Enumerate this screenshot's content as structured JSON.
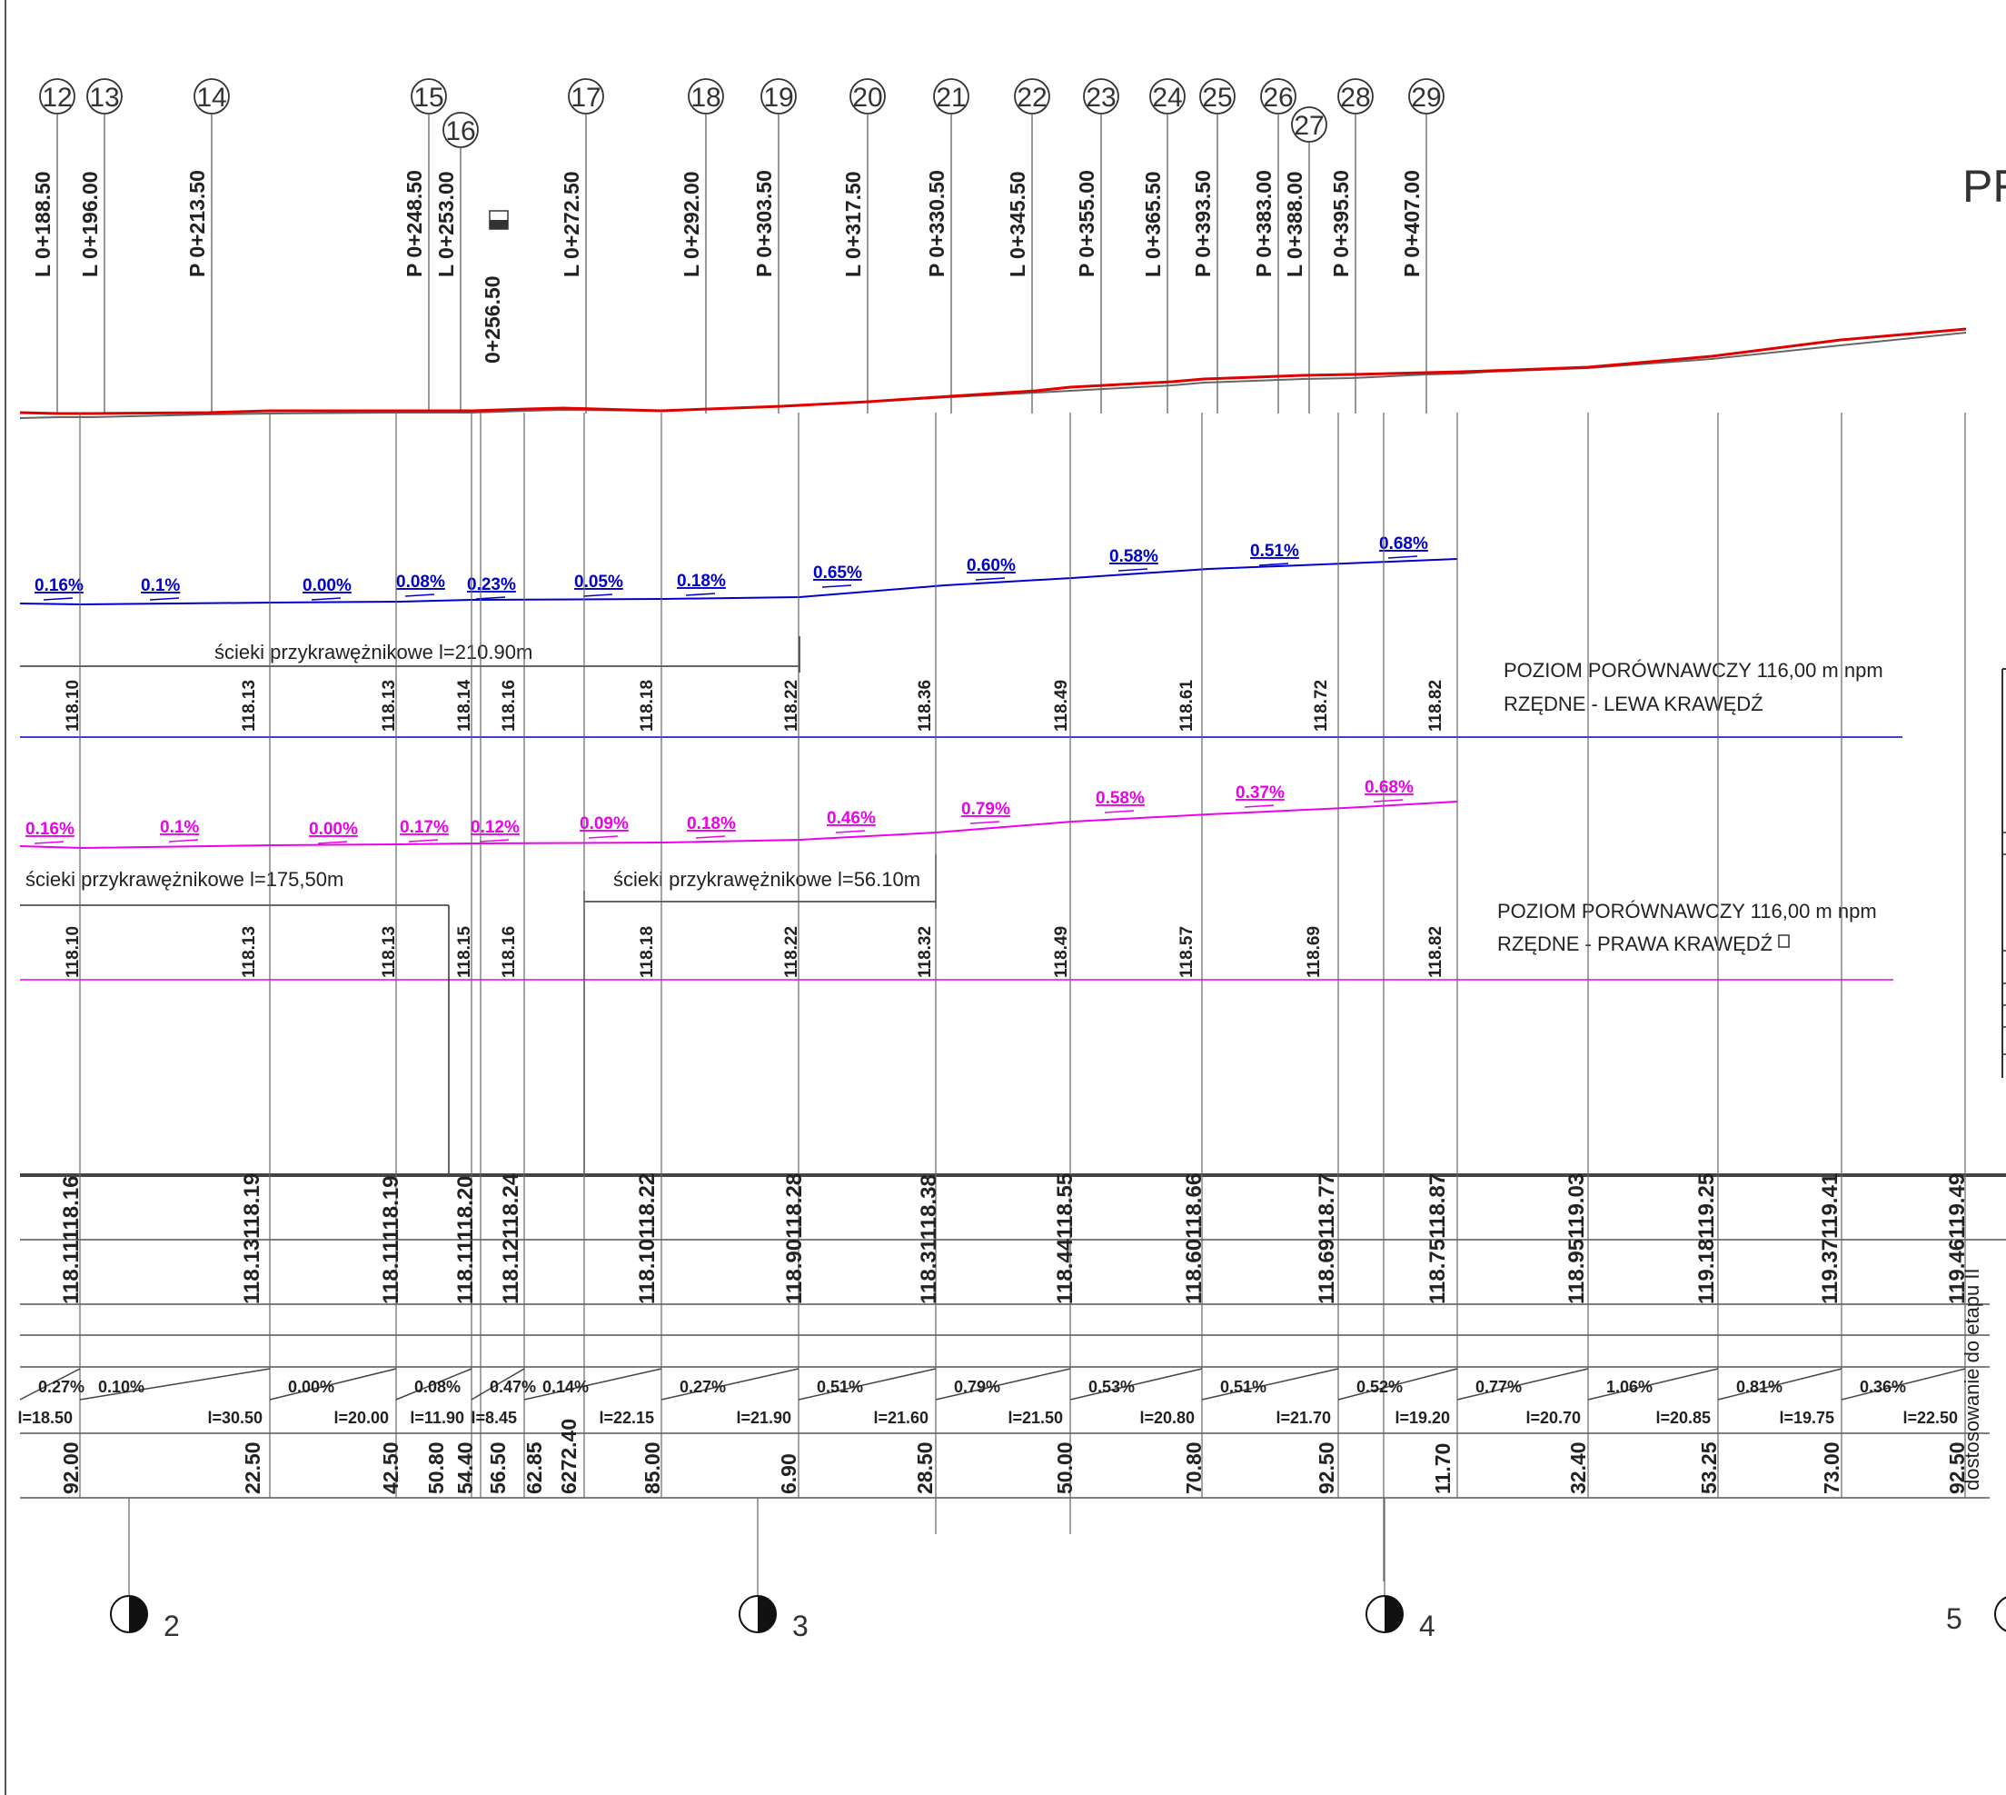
{
  "title_fragment": "PR",
  "stations": [
    {
      "no": "12",
      "label": "L 0+188.50"
    },
    {
      "no": "13",
      "label": "L 0+196.00"
    },
    {
      "no": "14",
      "label": "P 0+213.50"
    },
    {
      "no": "15",
      "label": "P 0+248.50"
    },
    {
      "no": "16",
      "label": "L 0+253.00"
    },
    {
      "no": "",
      "label": "0+256.50"
    },
    {
      "no": "17",
      "label": "L 0+272.50"
    },
    {
      "no": "18",
      "label": "L 0+292.00"
    },
    {
      "no": "19",
      "label": "P 0+303.50"
    },
    {
      "no": "20",
      "label": "L 0+317.50"
    },
    {
      "no": "21",
      "label": "P 0+330.50"
    },
    {
      "no": "22",
      "label": "L 0+345.50"
    },
    {
      "no": "23",
      "label": "P 0+355.00"
    },
    {
      "no": "24",
      "label": "L 0+365.50"
    },
    {
      "no": "25",
      "label": "P 0+393.50"
    },
    {
      "no": "26",
      "label": "P 0+383.00"
    },
    {
      "no": "27",
      "label": "L 0+388.00"
    },
    {
      "no": "28",
      "label": "P 0+395.50"
    },
    {
      "no": "29",
      "label": "P 0+407.00"
    }
  ],
  "left_edge": {
    "slopes": [
      "0.16%",
      "0.1%",
      "0.00%",
      "0.08%",
      "0.23%",
      "0.05%",
      "0.18%",
      "0.65%",
      "0.60%",
      "0.58%",
      "0.51%",
      "0.68%"
    ],
    "gutter_label": "ścieki przykrawężnikowe l=210.90m",
    "elevations": [
      "118.10",
      "118.13",
      "118.13",
      "118.14",
      "118.16",
      "118.18",
      "118.22",
      "118.36",
      "118.49",
      "118.61",
      "118.72",
      "118.82"
    ],
    "datum_line1": "POZIOM PORÓWNAWCZY 116,00 m npm",
    "datum_line2": "RZĘDNE - LEWA KRAWĘDŹ"
  },
  "right_edge": {
    "slopes": [
      "0.16%",
      "0.1%",
      "0.00%",
      "0.17%",
      "0.12%",
      "0.09%",
      "0.18%",
      "0.46%",
      "0.79%",
      "0.58%",
      "0.37%",
      "0.68%"
    ],
    "gutter_label_1": "ścieki przykrawężnikowe l=175,50m",
    "gutter_label_2": "ścieki przykrawężnikowe l=56.10m",
    "elevations": [
      "118.10",
      "118.13",
      "118.13",
      "118.15",
      "118.16",
      "118.18",
      "118.22",
      "118.32",
      "118.49",
      "118.57",
      "118.69",
      "118.82"
    ],
    "datum_line1": "POZIOM PORÓWNAWCZY 116,00 m npm",
    "datum_line2": "RZĘDNE - PRAWA KRAWĘDŹ"
  },
  "table": {
    "terrain_design": [
      "118.11118.16",
      "118.13118.19",
      "118.11118.19",
      "118.11118.20",
      "118.12118.24",
      "118.10118.22",
      "118.90118.28",
      "118.31118.38",
      "118.44118.55",
      "118.60118.66",
      "118.69118.77",
      "118.75118.87",
      "118.95119.03",
      "119.18119.25",
      "119.37119.41",
      "119.46119.49"
    ],
    "side_note": "dostosowanie do etapu II",
    "grade_pct": [
      "0.27%",
      "0.10%",
      "0.00%",
      "0.08%",
      "0.47%",
      "0.14%",
      "0.27%",
      "0.51%",
      "0.79%",
      "0.53%",
      "0.51%",
      "0.52%",
      "0.77%",
      "1.06%",
      "0.81%",
      "0.36%"
    ],
    "grade_len": [
      "l=18.50",
      "l=30.50",
      "l=20.00",
      "l=11.90",
      "l=8.45",
      "l=22.15",
      "l=21.90",
      "l=21.60",
      "l=21.50",
      "l=20.80",
      "l=21.70",
      "l=19.20",
      "l=20.70",
      "l=20.85",
      "l=19.75",
      "l=22.50"
    ],
    "distances": [
      "92.00",
      "22.50",
      "42.50",
      "50.80",
      "54.40",
      "56.50",
      "62.85",
      "6272.40",
      "85.00",
      "6.90",
      "28.50",
      "50.00",
      "70.80",
      "92.50",
      "11.70",
      "32.40",
      "53.25",
      "73.00",
      "92.50"
    ]
  },
  "markers": [
    "2",
    "3",
    "4",
    "5"
  ],
  "colors": {
    "design_line": "#e00000",
    "left": "#0000cc",
    "right": "#ee00ee",
    "ink": "#333333"
  }
}
